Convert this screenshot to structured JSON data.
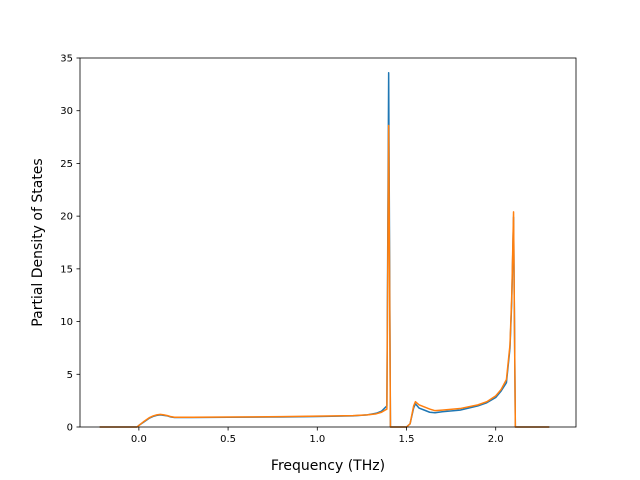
{
  "chart_data": {
    "type": "line",
    "title": "",
    "xlabel": "Frequency (THz)",
    "ylabel": "Partial Density of States",
    "xlim": [
      -0.33,
      2.45
    ],
    "ylim": [
      0,
      35
    ],
    "xticks": [
      0.0,
      0.5,
      1.0,
      1.5,
      2.0
    ],
    "xtick_labels": [
      "0.0",
      "0.5",
      "1.0",
      "1.5",
      "2.0"
    ],
    "yticks": [
      0,
      5,
      10,
      15,
      20,
      25,
      30,
      35
    ],
    "ytick_labels": [
      "0",
      "5",
      "10",
      "15",
      "20",
      "25",
      "30",
      "35"
    ],
    "grid": false,
    "legend": "none",
    "series": [
      {
        "color": "#1f77b4",
        "x": [
          -0.22,
          -0.01,
          0.0,
          0.03,
          0.06,
          0.08,
          0.1,
          0.12,
          0.14,
          0.16,
          0.18,
          0.2,
          0.3,
          0.5,
          0.8,
          1.0,
          1.2,
          1.28,
          1.33,
          1.36,
          1.39,
          1.4,
          1.41,
          1.42,
          1.5,
          1.52,
          1.54,
          1.55,
          1.57,
          1.6,
          1.63,
          1.66,
          1.7,
          1.8,
          1.9,
          1.95,
          2.0,
          2.03,
          2.06,
          2.08,
          2.09,
          2.1,
          2.11,
          2.12,
          2.3
        ],
        "y": [
          0,
          0,
          0.15,
          0.5,
          0.85,
          1.0,
          1.1,
          1.15,
          1.1,
          1.05,
          0.95,
          0.9,
          0.9,
          0.92,
          0.95,
          1.0,
          1.05,
          1.15,
          1.3,
          1.5,
          2.0,
          33.6,
          0,
          0,
          0,
          0.3,
          1.8,
          2.2,
          1.8,
          1.6,
          1.4,
          1.35,
          1.45,
          1.6,
          2.0,
          2.3,
          2.8,
          3.4,
          4.2,
          7.5,
          12.0,
          19.9,
          0,
          0,
          0
        ]
      },
      {
        "color": "#ff7f0e",
        "x": [
          -0.22,
          -0.01,
          0.0,
          0.03,
          0.06,
          0.08,
          0.1,
          0.12,
          0.14,
          0.16,
          0.18,
          0.2,
          0.3,
          0.5,
          0.8,
          1.0,
          1.2,
          1.28,
          1.33,
          1.36,
          1.39,
          1.4,
          1.41,
          1.42,
          1.5,
          1.52,
          1.54,
          1.55,
          1.57,
          1.6,
          1.63,
          1.66,
          1.7,
          1.8,
          1.9,
          1.95,
          2.0,
          2.03,
          2.06,
          2.08,
          2.09,
          2.1,
          2.11,
          2.12,
          2.3
        ],
        "y": [
          0,
          0,
          0.15,
          0.55,
          0.9,
          1.05,
          1.15,
          1.2,
          1.15,
          1.08,
          0.98,
          0.93,
          0.93,
          0.95,
          0.98,
          1.03,
          1.08,
          1.15,
          1.25,
          1.4,
          1.7,
          28.6,
          0,
          0,
          0,
          0.3,
          2.0,
          2.4,
          2.1,
          1.9,
          1.7,
          1.55,
          1.6,
          1.75,
          2.1,
          2.4,
          2.95,
          3.55,
          4.5,
          7.8,
          12.5,
          20.4,
          0,
          0,
          0
        ]
      }
    ]
  }
}
